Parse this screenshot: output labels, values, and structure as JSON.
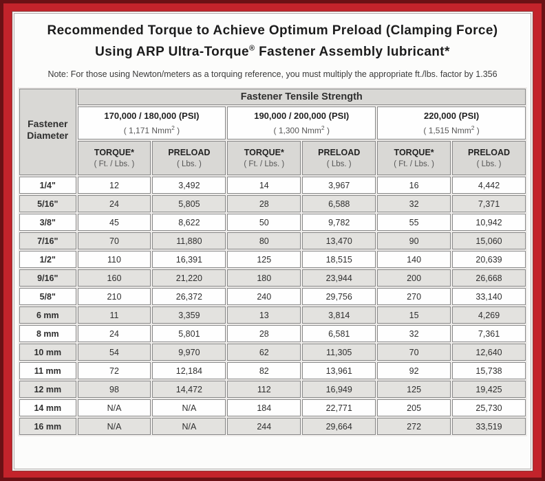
{
  "colors": {
    "frame_red": "#c3232b",
    "frame_dark_edge": "#6b1115",
    "header_gray": "#d9d8d5",
    "row_alt_gray": "#e3e2df",
    "cell_border_gray": "#878787"
  },
  "header": {
    "title_line1": "Recommended Torque to Achieve Optimum Preload (Clamping Force)",
    "title_line2_pre": "Using ARP Ultra-Torque",
    "title_registered": "®",
    "title_line2_post": " Fastener Assembly lubricant*",
    "note": "Note: For those using Newton/meters as a torquing reference, you must multiply the appropriate ft./lbs. factor by 1.356"
  },
  "table": {
    "corner": {
      "line1": "Fastener",
      "line2": "Diameter"
    },
    "tensile_header": "Fastener Tensile Strength",
    "groups": [
      {
        "psi": "170,000 / 180,000 (PSI)",
        "nmm_pre": "( 1,171 Nmm",
        "nmm_sup": "2",
        "nmm_post": " )"
      },
      {
        "psi": "190,000 / 200,000 (PSI)",
        "nmm_pre": "( 1,300 Nmm",
        "nmm_sup": "2",
        "nmm_post": " )"
      },
      {
        "psi": "220,000 (PSI)",
        "nmm_pre": "( 1,515 Nmm",
        "nmm_sup": "2",
        "nmm_post": " )"
      }
    ],
    "columns": [
      {
        "label": "TORQUE*",
        "sub": "( Ft. / Lbs. )"
      },
      {
        "label": "PRELOAD",
        "sub": "( Lbs. )"
      },
      {
        "label": "TORQUE*",
        "sub": "( Ft. / Lbs. )"
      },
      {
        "label": "PRELOAD",
        "sub": "( Lbs. )"
      },
      {
        "label": "TORQUE*",
        "sub": "( Ft. / Lbs. )"
      },
      {
        "label": "PRELOAD",
        "sub": "( Lbs. )"
      }
    ],
    "rows": [
      {
        "diameter": "1/4\"",
        "values": [
          "12",
          "3,492",
          "14",
          "3,967",
          "16",
          "4,442"
        ]
      },
      {
        "diameter": "5/16\"",
        "values": [
          "24",
          "5,805",
          "28",
          "6,588",
          "32",
          "7,371"
        ]
      },
      {
        "diameter": "3/8\"",
        "values": [
          "45",
          "8,622",
          "50",
          "9,782",
          "55",
          "10,942"
        ]
      },
      {
        "diameter": "7/16\"",
        "values": [
          "70",
          "11,880",
          "80",
          "13,470",
          "90",
          "15,060"
        ]
      },
      {
        "diameter": "1/2\"",
        "values": [
          "110",
          "16,391",
          "125",
          "18,515",
          "140",
          "20,639"
        ]
      },
      {
        "diameter": "9/16\"",
        "values": [
          "160",
          "21,220",
          "180",
          "23,944",
          "200",
          "26,668"
        ]
      },
      {
        "diameter": "5/8\"",
        "values": [
          "210",
          "26,372",
          "240",
          "29,756",
          "270",
          "33,140"
        ]
      },
      {
        "diameter": "6 mm",
        "values": [
          "11",
          "3,359",
          "13",
          "3,814",
          "15",
          "4,269"
        ]
      },
      {
        "diameter": "8 mm",
        "values": [
          "24",
          "5,801",
          "28",
          "6,581",
          "32",
          "7,361"
        ]
      },
      {
        "diameter": "10 mm",
        "values": [
          "54",
          "9,970",
          "62",
          "11,305",
          "70",
          "12,640"
        ]
      },
      {
        "diameter": "11 mm",
        "values": [
          "72",
          "12,184",
          "82",
          "13,961",
          "92",
          "15,738"
        ]
      },
      {
        "diameter": "12 mm",
        "values": [
          "98",
          "14,472",
          "112",
          "16,949",
          "125",
          "19,425"
        ]
      },
      {
        "diameter": "14 mm",
        "values": [
          "N/A",
          "N/A",
          "184",
          "22,771",
          "205",
          "25,730"
        ]
      },
      {
        "diameter": "16 mm",
        "values": [
          "N/A",
          "N/A",
          "244",
          "29,664",
          "272",
          "33,519"
        ]
      }
    ]
  }
}
